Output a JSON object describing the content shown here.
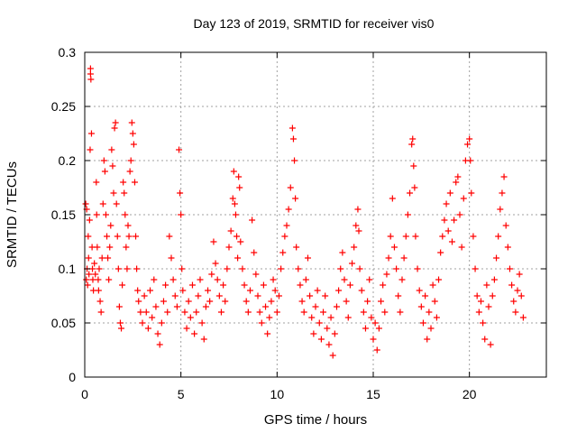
{
  "chart_data": {
    "type": "scatter",
    "title": "Day 123 of 2019, SRMTID for receiver vis0",
    "xlabel": "GPS time / hours",
    "ylabel": "SRMTID / TECUs",
    "xlim": [
      0,
      24
    ],
    "ylim": [
      0,
      0.3
    ],
    "xticks": [
      0,
      5,
      10,
      15,
      20
    ],
    "xtick_labels": [
      "0",
      "5",
      "10",
      "15",
      "20"
    ],
    "yticks": [
      0,
      0.05,
      0.1,
      0.15,
      0.2,
      0.25,
      0.3
    ],
    "ytick_labels": [
      "0",
      "0.05",
      "0.1",
      "0.15",
      "0.2",
      "0.25",
      "0.3"
    ],
    "grid": true,
    "marker": "+",
    "series_color": "#ff0000",
    "series": [
      {
        "name": "vis0",
        "points": [
          [
            0.05,
            0.16
          ],
          [
            0.08,
            0.09
          ],
          [
            0.1,
            0.155
          ],
          [
            0.12,
            0.1
          ],
          [
            0.15,
            0.085
          ],
          [
            0.18,
            0.13
          ],
          [
            0.2,
            0.11
          ],
          [
            0.22,
            0.095
          ],
          [
            0.25,
            0.145
          ],
          [
            0.28,
            0.21
          ],
          [
            0.3,
            0.28
          ],
          [
            0.32,
            0.275
          ],
          [
            0.3,
            0.285
          ],
          [
            0.35,
            0.225
          ],
          [
            0.38,
            0.12
          ],
          [
            0.4,
            0.1
          ],
          [
            0.42,
            0.09
          ],
          [
            0.45,
            0.08
          ],
          [
            0.5,
            0.105
          ],
          [
            0.55,
            0.095
          ],
          [
            0.6,
            0.18
          ],
          [
            0.62,
            0.15
          ],
          [
            0.65,
            0.12
          ],
          [
            0.7,
            0.09
          ],
          [
            0.72,
            0.08
          ],
          [
            0.75,
            0.1
          ],
          [
            0.8,
            0.07
          ],
          [
            0.85,
            0.06
          ],
          [
            0.9,
            0.11
          ],
          [
            0.95,
            0.16
          ],
          [
            1.0,
            0.2
          ],
          [
            1.05,
            0.19
          ],
          [
            1.1,
            0.15
          ],
          [
            1.15,
            0.13
          ],
          [
            1.2,
            0.11
          ],
          [
            1.25,
            0.09
          ],
          [
            1.3,
            0.12
          ],
          [
            1.35,
            0.14
          ],
          [
            1.4,
            0.21
          ],
          [
            1.45,
            0.195
          ],
          [
            1.5,
            0.17
          ],
          [
            1.55,
            0.23
          ],
          [
            1.6,
            0.235
          ],
          [
            1.65,
            0.16
          ],
          [
            1.7,
            0.13
          ],
          [
            1.75,
            0.1
          ],
          [
            1.8,
            0.065
          ],
          [
            1.85,
            0.05
          ],
          [
            1.9,
            0.045
          ],
          [
            1.95,
            0.085
          ],
          [
            2.0,
            0.18
          ],
          [
            2.05,
            0.17
          ],
          [
            2.1,
            0.15
          ],
          [
            2.15,
            0.12
          ],
          [
            2.2,
            0.1
          ],
          [
            2.25,
            0.14
          ],
          [
            2.3,
            0.13
          ],
          [
            2.35,
            0.19
          ],
          [
            2.4,
            0.2
          ],
          [
            2.45,
            0.235
          ],
          [
            2.5,
            0.225
          ],
          [
            2.55,
            0.215
          ],
          [
            2.6,
            0.18
          ],
          [
            2.65,
            0.13
          ],
          [
            2.7,
            0.1
          ],
          [
            2.75,
            0.08
          ],
          [
            2.8,
            0.07
          ],
          [
            2.9,
            0.06
          ],
          [
            3.0,
            0.05
          ],
          [
            3.1,
            0.075
          ],
          [
            3.2,
            0.06
          ],
          [
            3.3,
            0.045
          ],
          [
            3.4,
            0.08
          ],
          [
            3.5,
            0.055
          ],
          [
            3.6,
            0.09
          ],
          [
            3.7,
            0.065
          ],
          [
            3.8,
            0.04
          ],
          [
            3.9,
            0.03
          ],
          [
            4.0,
            0.05
          ],
          [
            4.1,
            0.07
          ],
          [
            4.2,
            0.085
          ],
          [
            4.3,
            0.06
          ],
          [
            4.4,
            0.13
          ],
          [
            4.5,
            0.11
          ],
          [
            4.6,
            0.09
          ],
          [
            4.7,
            0.075
          ],
          [
            4.8,
            0.065
          ],
          [
            4.9,
            0.21
          ],
          [
            4.95,
            0.17
          ],
          [
            5.0,
            0.15
          ],
          [
            5.05,
            0.1
          ],
          [
            5.1,
            0.08
          ],
          [
            5.2,
            0.06
          ],
          [
            5.3,
            0.045
          ],
          [
            5.4,
            0.07
          ],
          [
            5.5,
            0.055
          ],
          [
            5.6,
            0.085
          ],
          [
            5.7,
            0.04
          ],
          [
            5.8,
            0.06
          ],
          [
            5.9,
            0.075
          ],
          [
            6.0,
            0.09
          ],
          [
            6.1,
            0.05
          ],
          [
            6.2,
            0.035
          ],
          [
            6.3,
            0.065
          ],
          [
            6.4,
            0.08
          ],
          [
            6.5,
            0.07
          ],
          [
            6.6,
            0.095
          ],
          [
            6.7,
            0.125
          ],
          [
            6.8,
            0.105
          ],
          [
            6.9,
            0.09
          ],
          [
            7.0,
            0.075
          ],
          [
            7.1,
            0.06
          ],
          [
            7.2,
            0.085
          ],
          [
            7.3,
            0.07
          ],
          [
            7.4,
            0.1
          ],
          [
            7.5,
            0.12
          ],
          [
            7.6,
            0.135
          ],
          [
            7.7,
            0.165
          ],
          [
            7.75,
            0.19
          ],
          [
            7.8,
            0.16
          ],
          [
            7.85,
            0.15
          ],
          [
            7.9,
            0.13
          ],
          [
            7.95,
            0.11
          ],
          [
            8.0,
            0.185
          ],
          [
            8.05,
            0.175
          ],
          [
            8.1,
            0.125
          ],
          [
            8.2,
            0.1
          ],
          [
            8.3,
            0.085
          ],
          [
            8.4,
            0.07
          ],
          [
            8.5,
            0.06
          ],
          [
            8.6,
            0.08
          ],
          [
            8.7,
            0.145
          ],
          [
            8.8,
            0.115
          ],
          [
            8.9,
            0.095
          ],
          [
            9.0,
            0.075
          ],
          [
            9.1,
            0.06
          ],
          [
            9.2,
            0.05
          ],
          [
            9.3,
            0.085
          ],
          [
            9.4,
            0.065
          ],
          [
            9.5,
            0.04
          ],
          [
            9.6,
            0.055
          ],
          [
            9.7,
            0.07
          ],
          [
            9.8,
            0.09
          ],
          [
            9.9,
            0.08
          ],
          [
            10.0,
            0.06
          ],
          [
            10.1,
            0.075
          ],
          [
            10.2,
            0.1
          ],
          [
            10.3,
            0.115
          ],
          [
            10.4,
            0.13
          ],
          [
            10.5,
            0.14
          ],
          [
            10.6,
            0.155
          ],
          [
            10.7,
            0.175
          ],
          [
            10.8,
            0.23
          ],
          [
            10.85,
            0.22
          ],
          [
            10.9,
            0.2
          ],
          [
            10.95,
            0.165
          ],
          [
            11.0,
            0.12
          ],
          [
            11.1,
            0.1
          ],
          [
            11.2,
            0.085
          ],
          [
            11.3,
            0.07
          ],
          [
            11.4,
            0.06
          ],
          [
            11.5,
            0.09
          ],
          [
            11.6,
            0.11
          ],
          [
            11.7,
            0.075
          ],
          [
            11.8,
            0.055
          ],
          [
            11.9,
            0.04
          ],
          [
            12.0,
            0.065
          ],
          [
            12.1,
            0.08
          ],
          [
            12.2,
            0.05
          ],
          [
            12.3,
            0.035
          ],
          [
            12.4,
            0.06
          ],
          [
            12.5,
            0.075
          ],
          [
            12.6,
            0.045
          ],
          [
            12.7,
            0.03
          ],
          [
            12.8,
            0.055
          ],
          [
            12.9,
            0.02
          ],
          [
            13.0,
            0.04
          ],
          [
            13.1,
            0.065
          ],
          [
            13.2,
            0.08
          ],
          [
            13.3,
            0.1
          ],
          [
            13.4,
            0.115
          ],
          [
            13.5,
            0.09
          ],
          [
            13.6,
            0.07
          ],
          [
            13.7,
            0.055
          ],
          [
            13.8,
            0.085
          ],
          [
            13.9,
            0.105
          ],
          [
            14.0,
            0.12
          ],
          [
            14.1,
            0.14
          ],
          [
            14.2,
            0.155
          ],
          [
            14.25,
            0.135
          ],
          [
            14.3,
            0.1
          ],
          [
            14.4,
            0.08
          ],
          [
            14.5,
            0.06
          ],
          [
            14.6,
            0.045
          ],
          [
            14.7,
            0.07
          ],
          [
            14.8,
            0.09
          ],
          [
            14.9,
            0.055
          ],
          [
            15.0,
            0.035
          ],
          [
            15.1,
            0.05
          ],
          [
            15.2,
            0.025
          ],
          [
            15.3,
            0.045
          ],
          [
            15.4,
            0.07
          ],
          [
            15.5,
            0.085
          ],
          [
            15.6,
            0.06
          ],
          [
            15.7,
            0.095
          ],
          [
            15.8,
            0.11
          ],
          [
            15.9,
            0.13
          ],
          [
            16.0,
            0.165
          ],
          [
            16.1,
            0.12
          ],
          [
            16.2,
            0.1
          ],
          [
            16.3,
            0.075
          ],
          [
            16.4,
            0.06
          ],
          [
            16.5,
            0.09
          ],
          [
            16.6,
            0.11
          ],
          [
            16.7,
            0.13
          ],
          [
            16.8,
            0.15
          ],
          [
            16.9,
            0.17
          ],
          [
            17.0,
            0.215
          ],
          [
            17.05,
            0.22
          ],
          [
            17.1,
            0.195
          ],
          [
            17.15,
            0.175
          ],
          [
            17.2,
            0.13
          ],
          [
            17.3,
            0.1
          ],
          [
            17.4,
            0.08
          ],
          [
            17.5,
            0.065
          ],
          [
            17.6,
            0.05
          ],
          [
            17.7,
            0.075
          ],
          [
            17.8,
            0.035
          ],
          [
            17.9,
            0.06
          ],
          [
            18.0,
            0.045
          ],
          [
            18.1,
            0.085
          ],
          [
            18.2,
            0.07
          ],
          [
            18.3,
            0.055
          ],
          [
            18.4,
            0.09
          ],
          [
            18.5,
            0.115
          ],
          [
            18.6,
            0.13
          ],
          [
            18.7,
            0.145
          ],
          [
            18.8,
            0.16
          ],
          [
            18.9,
            0.135
          ],
          [
            19.0,
            0.17
          ],
          [
            19.1,
            0.125
          ],
          [
            19.2,
            0.145
          ],
          [
            19.3,
            0.18
          ],
          [
            19.4,
            0.185
          ],
          [
            19.5,
            0.15
          ],
          [
            19.6,
            0.12
          ],
          [
            19.7,
            0.165
          ],
          [
            19.8,
            0.2
          ],
          [
            19.9,
            0.215
          ],
          [
            20.0,
            0.22
          ],
          [
            20.05,
            0.2
          ],
          [
            20.1,
            0.17
          ],
          [
            20.2,
            0.13
          ],
          [
            20.3,
            0.1
          ],
          [
            20.4,
            0.075
          ],
          [
            20.5,
            0.06
          ],
          [
            20.6,
            0.07
          ],
          [
            20.7,
            0.05
          ],
          [
            20.8,
            0.035
          ],
          [
            20.9,
            0.085
          ],
          [
            21.0,
            0.065
          ],
          [
            21.1,
            0.03
          ],
          [
            21.2,
            0.075
          ],
          [
            21.3,
            0.09
          ],
          [
            21.4,
            0.11
          ],
          [
            21.5,
            0.13
          ],
          [
            21.6,
            0.155
          ],
          [
            21.7,
            0.17
          ],
          [
            21.8,
            0.185
          ],
          [
            21.9,
            0.14
          ],
          [
            22.0,
            0.12
          ],
          [
            22.1,
            0.1
          ],
          [
            22.2,
            0.085
          ],
          [
            22.3,
            0.07
          ],
          [
            22.4,
            0.06
          ],
          [
            22.5,
            0.08
          ],
          [
            22.6,
            0.095
          ],
          [
            22.7,
            0.075
          ],
          [
            22.8,
            0.055
          ]
        ]
      }
    ]
  }
}
